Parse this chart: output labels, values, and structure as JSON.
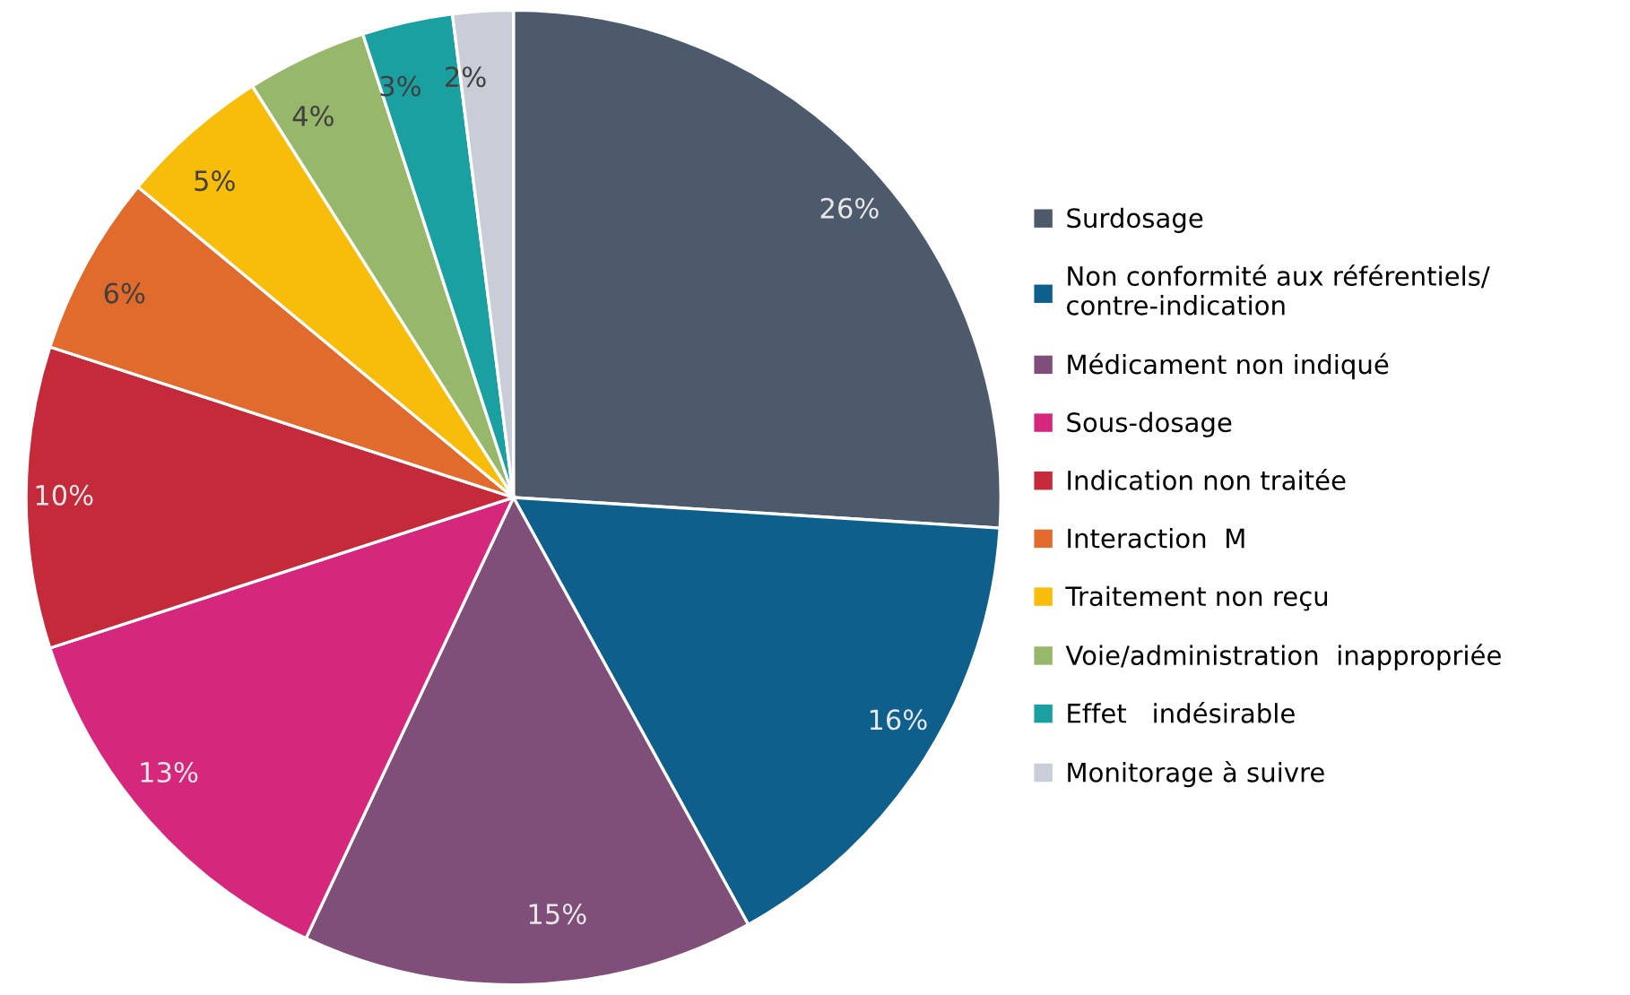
{
  "chart_data": {
    "type": "pie",
    "categories": [
      "Surdosage",
      "Non conformité aux référentiels/\ncontre-indication",
      "Médicament non indiqué",
      "Sous-dosage",
      "Indication non traitée",
      "Interaction  M",
      "Traitement non reçu",
      "Voie/administration  inappropriée",
      "Effet   indésirable",
      "Monitorage à suivre"
    ],
    "values": [
      26,
      16,
      15,
      13,
      10,
      6,
      5,
      4,
      3,
      2
    ],
    "colors": [
      "#4d5a6b",
      "#0e5f8c",
      "#7f4f7a",
      "#d5287c",
      "#c42a3a",
      "#e06b2c",
      "#f8bd0b",
      "#97b86a",
      "#1aa0a0",
      "#c9cdd8"
    ],
    "value_labels": [
      "26%",
      "16%",
      "15%",
      "13%",
      "10%",
      "6%",
      "5%",
      "4%",
      "3%",
      "2%"
    ],
    "legend": "right"
  }
}
